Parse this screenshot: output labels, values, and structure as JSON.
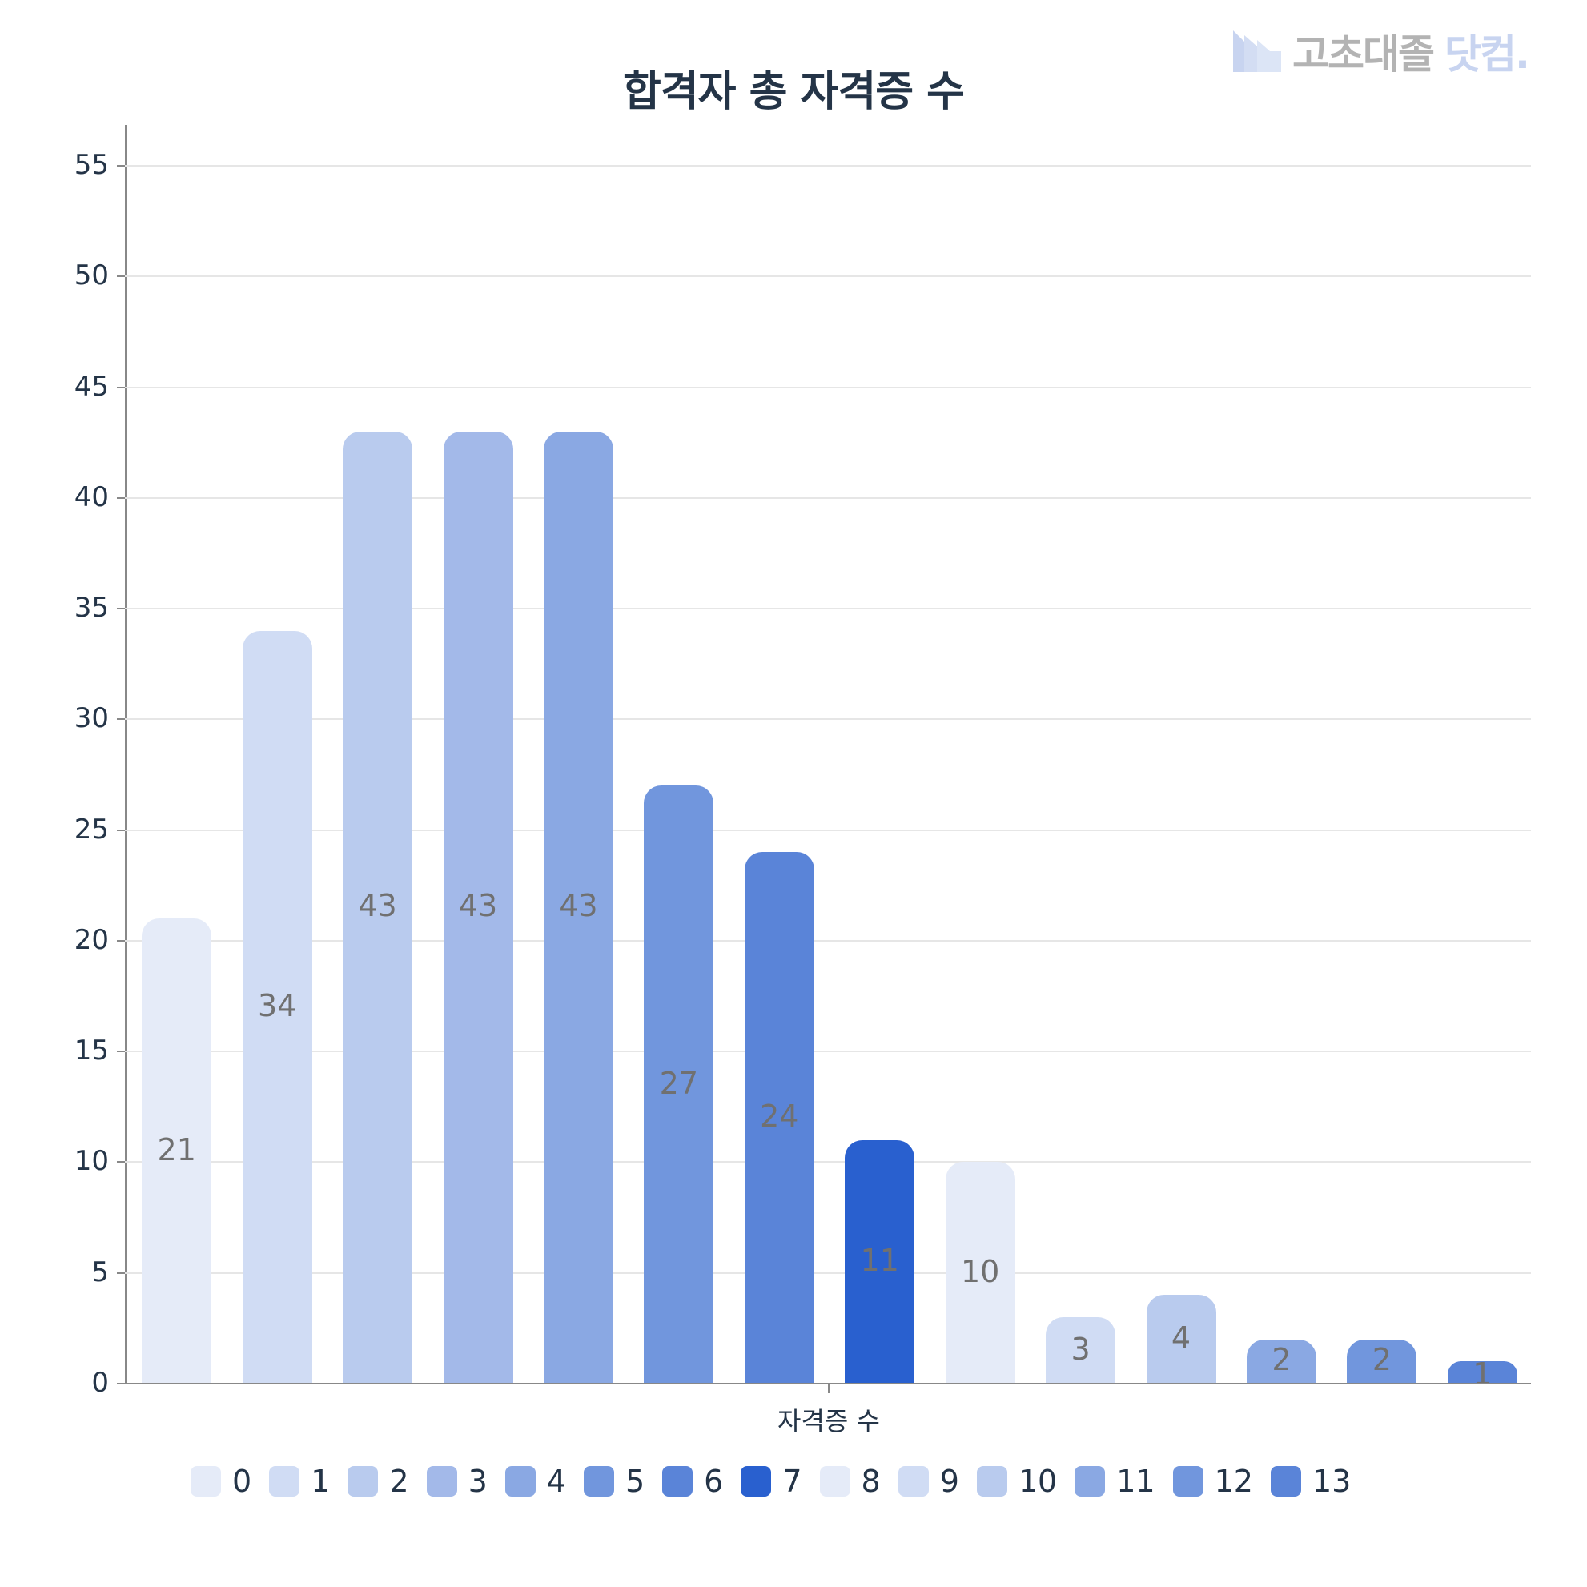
{
  "header": {
    "title": "합격자 총 자격증 수",
    "logo": {
      "part1": "고초대졸",
      "part2": "닷컴."
    }
  },
  "chart_data": {
    "type": "bar",
    "title": "합격자 총 자격증 수",
    "xlabel": "자격증 수",
    "ylabel": "",
    "ylim": [
      0,
      57
    ],
    "yticks": [
      0,
      5,
      10,
      15,
      20,
      25,
      30,
      35,
      40,
      45,
      50,
      55
    ],
    "grid": true,
    "legend_position": "bottom",
    "categories": [
      "0",
      "1",
      "2",
      "3",
      "4",
      "5",
      "6",
      "7",
      "8",
      "9",
      "10",
      "11",
      "12",
      "13"
    ],
    "values": [
      21,
      34,
      43,
      43,
      43,
      27,
      24,
      11,
      10,
      3,
      4,
      2,
      2,
      1
    ],
    "colors": [
      "#e5ebf8",
      "#d0dcf4",
      "#b9cbee",
      "#a3b9e9",
      "#8aa8e3",
      "#7196dd",
      "#5a84d8",
      "#2960cf",
      "#e5ebf8",
      "#d0dcf4",
      "#b9cbee",
      "#8aa8e3",
      "#7196dd",
      "#5a84d8"
    ],
    "series": [
      {
        "name": "자격증 수",
        "values": [
          21,
          34,
          43,
          43,
          43,
          27,
          24,
          11,
          10,
          3,
          4,
          2,
          2,
          1
        ]
      }
    ]
  },
  "colors": {
    "title": "#243447",
    "axis": "#888888",
    "grid": "#e6e6e6",
    "label": "#707070"
  }
}
